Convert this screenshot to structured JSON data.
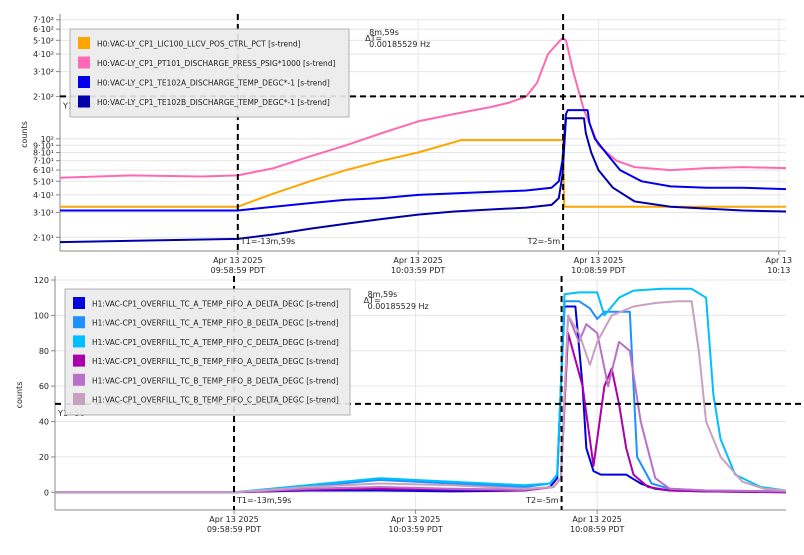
{
  "chart_data": [
    {
      "type": "line",
      "name": "top-panel",
      "ylabel": "counts",
      "y_scale": "log",
      "ylim": [
        16,
        720
      ],
      "x_tick_labels": [
        [
          "Apr 13 2025",
          "09:58:59 PDT"
        ],
        [
          "Apr 13 2025",
          "10:03:59 PDT"
        ],
        [
          "Apr 13 2025",
          "10:08:59 PDT"
        ],
        [
          "Apr 13",
          "10:13"
        ]
      ],
      "x_ticks_min": [
        0,
        5,
        10,
        15
      ],
      "xlim_min": [
        -4.93,
        15.2
      ],
      "y_ticks": [
        {
          "value": 20,
          "label": "2·10¹"
        },
        {
          "value": 30,
          "label": "3·10¹"
        },
        {
          "value": 40,
          "label": "4·10¹"
        },
        {
          "value": 50,
          "label": "5·10¹"
        },
        {
          "value": 60,
          "label": "6·10¹"
        },
        {
          "value": 70,
          "label": "7·10¹"
        },
        {
          "value": 80,
          "label": "8·10¹"
        },
        {
          "value": 90,
          "label": "9·10¹"
        },
        {
          "value": 100,
          "label": "10²"
        },
        {
          "value": 200,
          "label": "2·10²"
        },
        {
          "value": 300,
          "label": "3·10²"
        },
        {
          "value": 400,
          "label": "4·10²"
        },
        {
          "value": 500,
          "label": "5·10²"
        },
        {
          "value": 600,
          "label": "6·10²"
        },
        {
          "value": 700,
          "label": "7·10²"
        }
      ],
      "cursors": {
        "T1": {
          "x_min": 0,
          "label": "T1=-13m,59s"
        },
        "T2": {
          "x_min": 9.02,
          "label": "T2=-5m"
        },
        "Y1": {
          "value": 200,
          "label": "Y1=200"
        },
        "delta_label": "ΔT=",
        "delta_time": "8m,59s",
        "delta_freq": "0.00185529 Hz"
      },
      "series": [
        {
          "name": "H0:VAC-LY_CP1_LIC100_LLCV_POS_CTRL_PCT [s-trend]",
          "color": "#ffa500",
          "x": [
            -4.93,
            0,
            1,
            2,
            3,
            4,
            5,
            6.2,
            9.0,
            9.02,
            9.05,
            15.2
          ],
          "y": [
            33,
            33,
            41,
            50,
            60,
            70,
            80,
            98,
            98,
            98,
            33,
            33
          ]
        },
        {
          "name": "H0:VAC-LY_CP1_PT101_DISCHARGE_PRESS_PSIG*1000 [s-trend]",
          "color": "#ff69b4",
          "x": [
            -4.93,
            -3,
            -1,
            0,
            1,
            2,
            3,
            4,
            5,
            6,
            7,
            7.5,
            8,
            8.3,
            8.6,
            9,
            9.1,
            9.3,
            9.6,
            10,
            10.5,
            11,
            12,
            13,
            14,
            15.2
          ],
          "y": [
            53,
            55,
            54,
            55,
            62,
            75,
            90,
            110,
            133,
            150,
            168,
            180,
            200,
            250,
            400,
            520,
            500,
            300,
            160,
            90,
            70,
            63,
            60,
            62,
            63,
            62
          ]
        },
        {
          "name": "H0:VAC-LY_CP1_TE102A_DISCHARGE_TEMP_DEGC*-1 [s-trend]",
          "color": "#0000ee",
          "x": [
            -4.93,
            0,
            1,
            2,
            3,
            4,
            5,
            6,
            7,
            8,
            8.7,
            8.9,
            9.0,
            9.1,
            9.15,
            9.7,
            9.75,
            9.9,
            10.2,
            10.6,
            11.2,
            12,
            13,
            14,
            15.2
          ],
          "y": [
            31,
            31,
            33,
            35,
            37,
            38,
            40,
            41,
            42,
            43,
            45,
            50,
            70,
            150,
            160,
            160,
            130,
            100,
            80,
            60,
            50,
            46,
            45,
            45,
            44
          ]
        },
        {
          "name": "H0:VAC-LY_CP1_TE102B_DISCHARGE_TEMP_DEGC*-1 [s-trend]",
          "color": "#0000aa",
          "x": [
            -4.93,
            0,
            1,
            2,
            3,
            4,
            5,
            6,
            7,
            8,
            8.7,
            8.9,
            9.0,
            9.1,
            9.6,
            9.65,
            9.8,
            10,
            10.4,
            11,
            12,
            13,
            14,
            15.2
          ],
          "y": [
            18.5,
            19.5,
            21,
            23,
            25,
            27,
            29,
            30.5,
            31.5,
            32.5,
            34,
            38,
            55,
            140,
            140,
            110,
            80,
            60,
            45,
            36,
            33,
            32,
            31,
            30.5
          ]
        }
      ]
    },
    {
      "type": "line",
      "name": "bottom-panel",
      "ylabel": "counts",
      "ylim": [
        -10,
        120
      ],
      "x_tick_labels": [
        [
          "Apr 13 2025",
          "09:58:59 PDT"
        ],
        [
          "Apr 13 2025",
          "10:03:59 PDT"
        ],
        [
          "Apr 13 2025",
          "10:08:59 PDT"
        ]
      ],
      "x_ticks_min": [
        0,
        5,
        10
      ],
      "xlim_min": [
        -4.93,
        15.2
      ],
      "y_ticks": [
        {
          "value": 0,
          "label": "0"
        },
        {
          "value": 20,
          "label": "20"
        },
        {
          "value": 40,
          "label": "40"
        },
        {
          "value": 60,
          "label": "60"
        },
        {
          "value": 80,
          "label": "80"
        },
        {
          "value": 100,
          "label": "100"
        },
        {
          "value": 120,
          "label": "120"
        }
      ],
      "cursors": {
        "T1": {
          "x_min": 0,
          "label": "T1=-13m,59s"
        },
        "T2": {
          "x_min": 9.02,
          "label": "T2=-5m"
        },
        "Y1": {
          "value": 50,
          "label": "Y1=50"
        },
        "delta_label": "ΔT=",
        "delta_time": "8m,59s",
        "delta_freq": "0.00185529 Hz"
      },
      "series": [
        {
          "name": "H1:VAC-CP1_OVERFILL_TC_A_TEMP_FIFO_A_DELTA_DEGC [s-trend]",
          "color": "#0000dd",
          "x": [
            -4.93,
            0,
            2,
            4,
            6,
            8,
            8.7,
            8.9,
            9.0,
            9.1,
            9.4,
            9.6,
            9.7,
            9.9,
            10.1,
            10.6,
            10.8,
            11.2,
            11.6,
            12,
            13,
            15.2
          ],
          "y": [
            0,
            0,
            1,
            1,
            0.5,
            1,
            3,
            8,
            60,
            105,
            105,
            60,
            25,
            12,
            10,
            10,
            10,
            5,
            2,
            1,
            0.5,
            0
          ]
        },
        {
          "name": "H1:VAC-CP1_OVERFILL_TC_A_TEMP_FIFO_B_DELTA_DEGC [s-trend]",
          "color": "#1e90ff",
          "x": [
            -4.93,
            0,
            2,
            4,
            6,
            8,
            8.7,
            8.9,
            9.0,
            9.1,
            9.5,
            9.8,
            10,
            10.2,
            10.9,
            11.1,
            11.5,
            12,
            13,
            15.2
          ],
          "y": [
            0,
            0,
            3,
            7,
            5,
            3,
            5,
            10,
            60,
            108,
            108,
            104,
            98,
            102,
            102,
            20,
            5,
            2,
            1,
            0.5
          ]
        },
        {
          "name": "H1:VAC-CP1_OVERFILL_TC_A_TEMP_FIFO_C_DELTA_DEGC [s-trend]",
          "color": "#00bfff",
          "x": [
            -4.93,
            0,
            2,
            4,
            6,
            8,
            8.7,
            8.9,
            9.0,
            9.1,
            9.5,
            10.0,
            10.2,
            10.6,
            11.0,
            11.8,
            12.6,
            13.0,
            13.2,
            13.4,
            13.8,
            14.5,
            15.2
          ],
          "y": [
            0,
            0,
            4,
            8,
            6,
            4,
            5,
            10,
            60,
            112,
            113,
            113,
            100,
            110,
            114,
            115,
            115,
            110,
            55,
            30,
            10,
            3,
            1
          ]
        },
        {
          "name": "H1:VAC-CP1_OVERFILL_TC_B_TEMP_FIFO_A_DELTA_DEGC [s-trend]",
          "color": "#aa00aa",
          "x": [
            -4.93,
            0,
            2,
            4,
            6,
            8,
            8.8,
            9.0,
            9.2,
            9.6,
            9.9,
            10.0,
            10.2,
            10.4,
            10.6,
            10.8,
            11.0,
            11.4,
            12,
            13,
            15.2
          ],
          "y": [
            0,
            0,
            1.5,
            2,
            1.5,
            1,
            3,
            8,
            90,
            60,
            15,
            30,
            60,
            70,
            50,
            25,
            10,
            3,
            1,
            0.5,
            0
          ]
        },
        {
          "name": "H1:VAC-CP1_OVERFILL_TC_B_TEMP_FIFO_B_DELTA_DEGC [s-trend]",
          "color": "#ba70c8",
          "x": [
            -4.93,
            0,
            2,
            4,
            6,
            8,
            8.8,
            9.0,
            9.2,
            9.5,
            9.7,
            10.0,
            10.3,
            10.6,
            10.9,
            11.2,
            11.6,
            12,
            13,
            15.2
          ],
          "y": [
            0,
            0,
            2,
            3,
            2,
            1.5,
            3,
            8,
            100,
            85,
            95,
            90,
            60,
            85,
            80,
            40,
            8,
            2,
            1,
            0.5
          ]
        },
        {
          "name": "H1:VAC-CP1_OVERFILL_TC_B_TEMP_FIFO_C_DELTA_DEGC [s-trend]",
          "color": "#c8a0c0",
          "x": [
            -4.93,
            0,
            2,
            4,
            6,
            8,
            8.8,
            9.0,
            9.2,
            9.5,
            9.8,
            10.0,
            10.4,
            11.0,
            11.6,
            12.2,
            12.6,
            12.8,
            13.0,
            13.4,
            14,
            14.6,
            15.2
          ],
          "y": [
            0,
            0,
            3,
            5,
            4,
            2,
            3,
            8,
            100,
            90,
            72,
            85,
            100,
            105,
            107,
            108,
            108,
            80,
            40,
            20,
            6,
            2,
            1
          ]
        }
      ]
    }
  ]
}
